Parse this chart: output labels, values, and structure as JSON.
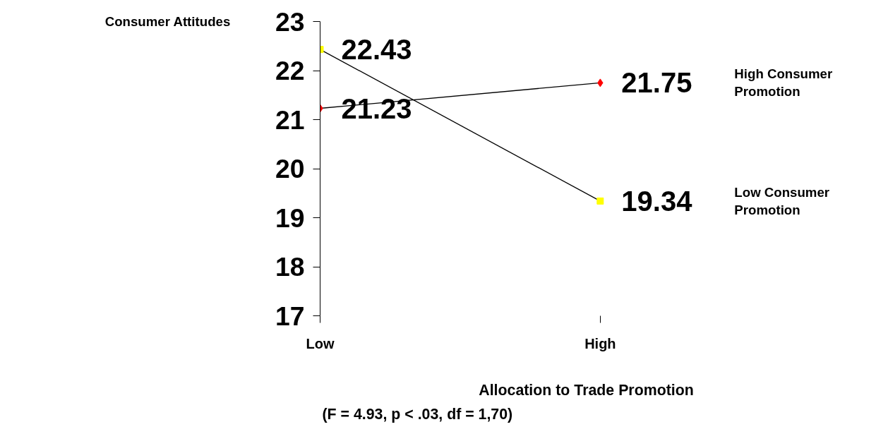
{
  "chart_data": {
    "type": "line",
    "xlabel": "Allocation to Trade Promotion",
    "ylabel": "Consumer Attitudes",
    "annotations": [
      "(F = 4.93, p < .03, df = 1,70)"
    ],
    "categories": [
      "Low",
      "High"
    ],
    "series": [
      {
        "name": "High Consumer Promotion",
        "color": "#ff0000",
        "marker": "diamond",
        "values": [
          21.23,
          21.75
        ]
      },
      {
        "name": "Low Consumer Promotion",
        "color": "#ffff00",
        "marker": "square",
        "values": [
          22.43,
          19.34
        ]
      }
    ],
    "ylim": [
      17,
      23
    ],
    "yticks": [
      17,
      18,
      19,
      20,
      21,
      22,
      23
    ],
    "data_labels": true,
    "grid": false,
    "legend": false
  }
}
